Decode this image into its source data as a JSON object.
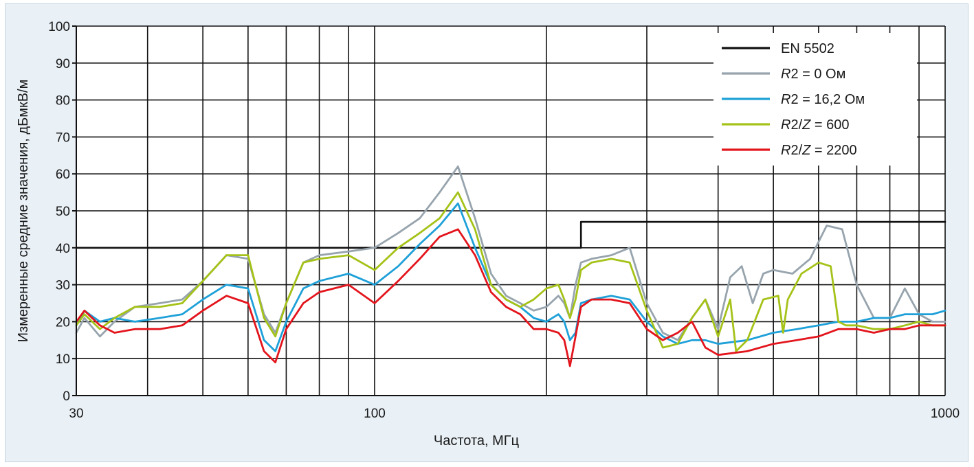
{
  "chart_data": {
    "type": "line",
    "title": "",
    "xlabel": "Частота, МГц",
    "ylabel": "Измеренные средние значения, дБмкВ/м",
    "x_scale": "log",
    "xlim": [
      30,
      1000
    ],
    "ylim": [
      0,
      100
    ],
    "x_tick_labels": [
      "30",
      "100",
      "1000"
    ],
    "x_tick_values": [
      30,
      100,
      1000
    ],
    "y_ticks": [
      0,
      10,
      20,
      30,
      40,
      50,
      60,
      70,
      80,
      90,
      100
    ],
    "grid": true,
    "legend_position": "top-right",
    "series": [
      {
        "name": "EN 5502",
        "name_parts": [
          {
            "text": "EN 5502",
            "italic": false
          }
        ],
        "color": "#111111",
        "x": [
          30,
          230,
          230,
          1000
        ],
        "y": [
          40,
          40,
          47,
          47
        ]
      },
      {
        "name": "R2 = 0 Ом",
        "name_parts": [
          {
            "text": "R",
            "italic": true
          },
          {
            "text": "2 = 0 Ом",
            "italic": false
          }
        ],
        "color": "#97a4ad",
        "x": [
          30,
          31,
          33,
          35,
          38,
          42,
          46,
          50,
          55,
          60,
          64,
          67,
          70,
          75,
          80,
          90,
          100,
          110,
          120,
          130,
          140,
          150,
          160,
          170,
          180,
          190,
          200,
          210,
          215,
          220,
          225,
          230,
          240,
          260,
          280,
          300,
          320,
          340,
          360,
          380,
          400,
          420,
          440,
          460,
          480,
          500,
          540,
          580,
          620,
          660,
          700,
          750,
          800,
          850,
          900,
          950,
          1000
        ],
        "y": [
          17,
          21,
          16,
          20,
          24,
          25,
          26,
          31,
          38,
          37,
          22,
          17,
          25,
          36,
          38,
          39,
          40,
          44,
          48,
          55,
          62,
          48,
          33,
          27,
          25,
          23,
          24,
          27,
          25,
          21,
          30,
          36,
          37,
          38,
          40,
          25,
          17,
          15,
          21,
          26,
          18,
          32,
          35,
          25,
          33,
          34,
          33,
          37,
          46,
          45,
          30,
          21,
          21,
          29,
          22,
          20,
          20
        ]
      },
      {
        "name": "R2 = 16,2 Ом",
        "name_parts": [
          {
            "text": "R",
            "italic": true
          },
          {
            "text": "2 = 16,2 Ом",
            "italic": false
          }
        ],
        "color": "#1ea0d8",
        "x": [
          30,
          31,
          33,
          35,
          38,
          42,
          46,
          50,
          55,
          60,
          64,
          67,
          70,
          75,
          80,
          90,
          100,
          110,
          120,
          130,
          140,
          150,
          160,
          170,
          180,
          190,
          200,
          210,
          215,
          220,
          225,
          230,
          240,
          260,
          280,
          300,
          320,
          340,
          360,
          380,
          400,
          450,
          500,
          550,
          600,
          650,
          700,
          750,
          800,
          850,
          900,
          950,
          1000
        ],
        "y": [
          19,
          23,
          20,
          21,
          20,
          21,
          22,
          26,
          30,
          29,
          15,
          12,
          20,
          29,
          31,
          33,
          30,
          35,
          41,
          46,
          52,
          40,
          30,
          26,
          24,
          21,
          20,
          22,
          20,
          15,
          17,
          25,
          26,
          27,
          26,
          20,
          16,
          14,
          15,
          15,
          14,
          15,
          17,
          18,
          19,
          20,
          20,
          21,
          21,
          22,
          22,
          22,
          23
        ]
      },
      {
        "name": "R2/Z = 600",
        "name_parts": [
          {
            "text": "R",
            "italic": true
          },
          {
            "text": "2/",
            "italic": false
          },
          {
            "text": "Z",
            "italic": true
          },
          {
            "text": " = 600",
            "italic": false
          }
        ],
        "color": "#a4c218",
        "x": [
          30,
          31,
          33,
          35,
          38,
          42,
          46,
          50,
          55,
          60,
          64,
          67,
          70,
          75,
          80,
          90,
          100,
          110,
          120,
          130,
          140,
          150,
          160,
          170,
          180,
          190,
          200,
          210,
          215,
          220,
          225,
          230,
          240,
          260,
          280,
          300,
          320,
          340,
          360,
          380,
          400,
          420,
          430,
          450,
          480,
          510,
          520,
          530,
          560,
          600,
          630,
          650,
          670,
          700,
          750,
          800,
          850,
          900,
          950,
          1000
        ],
        "y": [
          19,
          22,
          18,
          21,
          24,
          24,
          25,
          31,
          38,
          38,
          21,
          16,
          25,
          36,
          37,
          38,
          34,
          40,
          44,
          48,
          55,
          45,
          30,
          26,
          24,
          26,
          29,
          30,
          26,
          21,
          26,
          34,
          36,
          37,
          36,
          23,
          13,
          14,
          21,
          26,
          16,
          26,
          12,
          15,
          26,
          27,
          17,
          26,
          33,
          36,
          35,
          20,
          19,
          19,
          18,
          18,
          19,
          20,
          19,
          19
        ]
      },
      {
        "name": "R2/Z = 2200",
        "name_parts": [
          {
            "text": "R",
            "italic": true
          },
          {
            "text": "2/",
            "italic": false
          },
          {
            "text": "Z",
            "italic": true
          },
          {
            "text": " = 2200",
            "italic": false
          }
        ],
        "color": "#e3141c",
        "x": [
          30,
          31,
          33,
          35,
          38,
          42,
          46,
          50,
          55,
          60,
          64,
          67,
          70,
          75,
          80,
          90,
          100,
          110,
          120,
          130,
          140,
          150,
          160,
          170,
          180,
          190,
          200,
          210,
          215,
          220,
          225,
          230,
          240,
          260,
          280,
          300,
          320,
          340,
          360,
          380,
          400,
          450,
          500,
          550,
          600,
          650,
          700,
          750,
          800,
          850,
          900,
          950,
          1000
        ],
        "y": [
          20,
          23,
          19,
          17,
          18,
          18,
          19,
          23,
          27,
          25,
          12,
          9,
          18,
          25,
          28,
          30,
          25,
          31,
          37,
          43,
          45,
          38,
          28,
          24,
          22,
          18,
          18,
          17,
          15,
          8,
          16,
          24,
          26,
          26,
          25,
          18,
          15,
          17,
          20,
          13,
          11,
          12,
          14,
          15,
          16,
          18,
          18,
          17,
          18,
          18,
          19,
          19,
          19
        ]
      }
    ]
  }
}
